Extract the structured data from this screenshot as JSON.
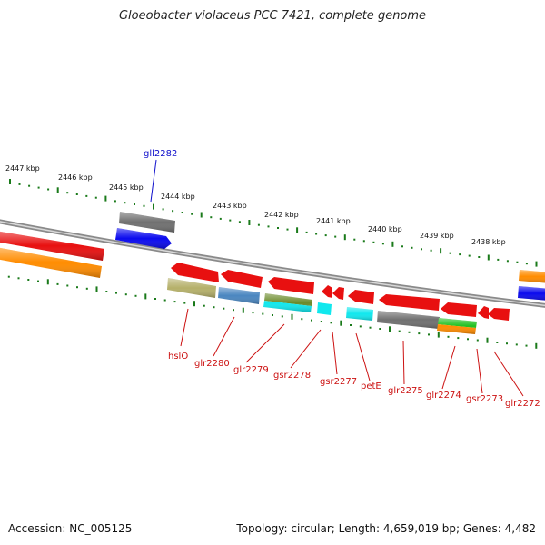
{
  "title": "Gloeobacter violaceus PCC 7421, complete genome",
  "footer": {
    "accession": "Accession: NC_005125",
    "summary": "Topology: circular; Length: 4,659,019 bp; Genes: 4,482"
  },
  "scale_labels": [
    "2447 kbp",
    "2446 kbp",
    "2445 kbp",
    "2444 kbp",
    "2443 kbp",
    "2442 kbp",
    "2441 kbp",
    "2440 kbp",
    "2439 kbp",
    "2438 kbp"
  ],
  "labels": {
    "top": [
      {
        "text": "gll2282",
        "color": "#1010cc"
      }
    ],
    "bottom": [
      {
        "text": "hslO",
        "color": "#cc1111"
      },
      {
        "text": "glr2280",
        "color": "#cc1111"
      },
      {
        "text": "glr2279",
        "color": "#cc1111"
      },
      {
        "text": "gsr2278",
        "color": "#cc1111"
      },
      {
        "text": "gsr2277",
        "color": "#cc1111"
      },
      {
        "text": "petE",
        "color": "#cc1111"
      },
      {
        "text": "glr2275",
        "color": "#cc1111"
      },
      {
        "text": "glr2274",
        "color": "#cc1111"
      },
      {
        "text": "gsr2273",
        "color": "#cc1111"
      },
      {
        "text": "glr2272",
        "color": "#cc1111"
      }
    ]
  },
  "colors": {
    "backbone": "#8a8a8a",
    "ticks": "#1a7a1a",
    "red": "#e81010",
    "orange": "#ff8c00",
    "blue": "#0a0aee",
    "gray": "#707070",
    "khaki": "#b5b06a",
    "steel": "#4a86c0",
    "olive": "#6a8a2a",
    "cyan": "#10e8ee",
    "green": "#20c020",
    "label_red": "#cc1111",
    "label_blue": "#1010cc"
  }
}
